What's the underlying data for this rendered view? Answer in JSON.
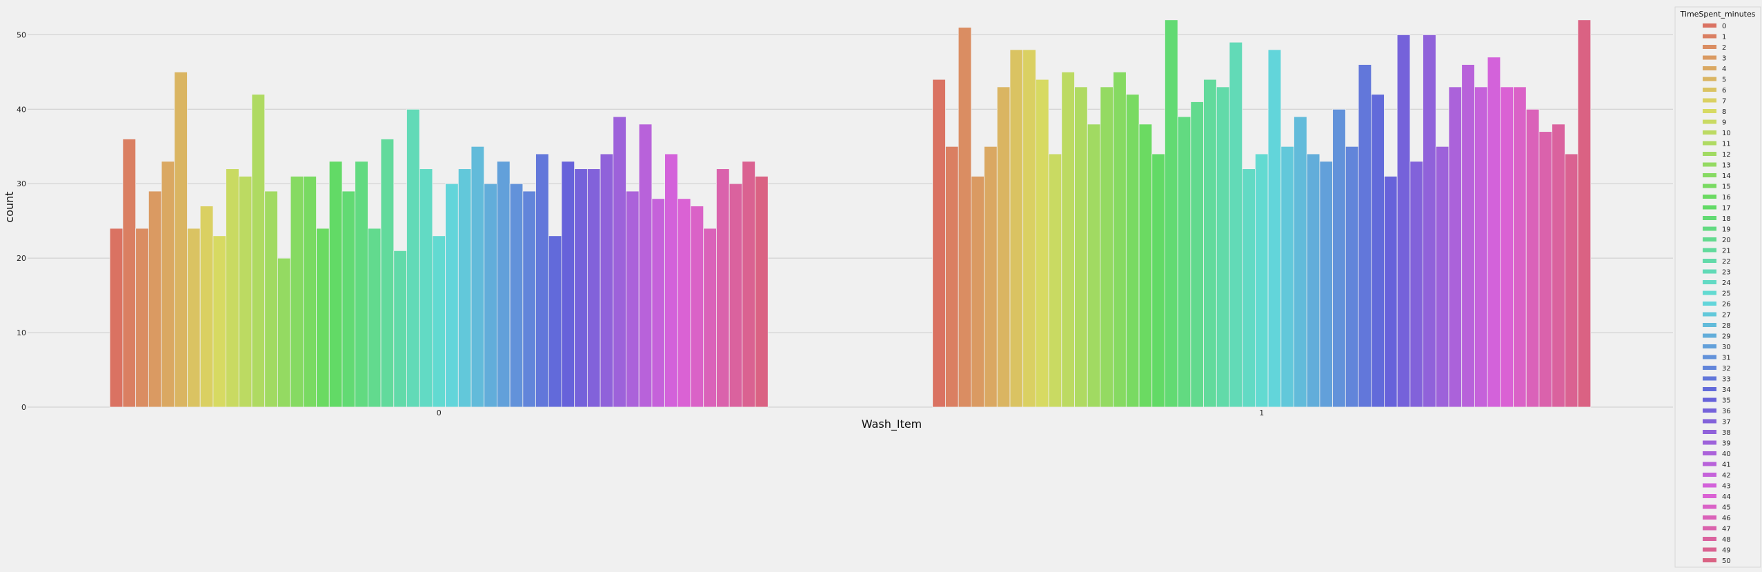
{
  "chart_data": {
    "type": "bar",
    "xlabel": "Wash_Item",
    "ylabel": "count",
    "categories": [
      "0",
      "1"
    ],
    "ylim": [
      0,
      53
    ],
    "yticks": [
      0,
      10,
      20,
      30,
      40,
      50
    ],
    "grid": true,
    "legend": {
      "title": "TimeSpent_minutes",
      "placement": "right",
      "entries": [
        "0",
        "1",
        "2",
        "3",
        "4",
        "5",
        "6",
        "7",
        "8",
        "9",
        "10",
        "11",
        "12",
        "13",
        "14",
        "15",
        "16",
        "17",
        "18",
        "19",
        "20",
        "21",
        "22",
        "23",
        "24",
        "25",
        "26",
        "27",
        "28",
        "29",
        "30",
        "31",
        "32",
        "33",
        "34",
        "35",
        "36",
        "37",
        "38",
        "39",
        "40",
        "41",
        "42",
        "43",
        "44",
        "45",
        "46",
        "47",
        "48",
        "49",
        "50"
      ]
    },
    "hue_values": [
      [
        24,
        36,
        24,
        29,
        33,
        45,
        24,
        27,
        23,
        32,
        31,
        42,
        29,
        20,
        31,
        31,
        24,
        33,
        29,
        33,
        24,
        36,
        21,
        40,
        32,
        23,
        30,
        32,
        35,
        30,
        33,
        30,
        29,
        34,
        23,
        33,
        32,
        32,
        34,
        39,
        29,
        38,
        28,
        34,
        28,
        27,
        24,
        32,
        30,
        33,
        31
      ],
      [
        44,
        35,
        51,
        31,
        35,
        43,
        48,
        48,
        44,
        34,
        45,
        43,
        38,
        43,
        45,
        42,
        38,
        34,
        52,
        39,
        41,
        44,
        43,
        49,
        32,
        34,
        48,
        35,
        39,
        34,
        33,
        40,
        35,
        46,
        42,
        31,
        50,
        33,
        50,
        35,
        43,
        46,
        43,
        47,
        43,
        43,
        40,
        37,
        38,
        34,
        52
      ]
    ]
  }
}
